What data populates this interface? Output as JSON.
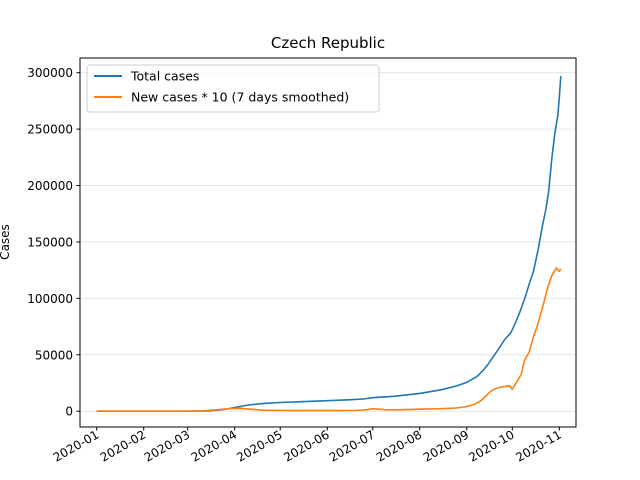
{
  "chart_data": {
    "type": "line",
    "title": "Czech Republic",
    "xlabel": "",
    "ylabel": "Cases",
    "x_tick_labels": [
      "2020-01",
      "2020-02",
      "2020-03",
      "2020-04",
      "2020-05",
      "2020-06",
      "2020-07",
      "2020-08",
      "2020-09",
      "2020-10",
      "2020-11"
    ],
    "y_ticks": [
      0,
      50000,
      100000,
      150000,
      200000,
      250000,
      300000
    ],
    "y_tick_labels": [
      "0",
      "50000",
      "100000",
      "150000",
      "200000",
      "250000",
      "300000"
    ],
    "xlim": [
      "2019-12-21",
      "2020-11-12"
    ],
    "ylim": [
      -14000,
      313000
    ],
    "grid": "horizontal",
    "legend_position": "upper-left",
    "series": [
      {
        "name": "Total cases",
        "color": "#1f77b4",
        "points": [
          [
            "2020-01-01",
            0
          ],
          [
            "2020-02-01",
            0
          ],
          [
            "2020-03-01",
            0
          ],
          [
            "2020-03-15",
            250
          ],
          [
            "2020-03-25",
            1500
          ],
          [
            "2020-04-01",
            3300
          ],
          [
            "2020-04-10",
            5500
          ],
          [
            "2020-04-20",
            6900
          ],
          [
            "2020-05-01",
            7700
          ],
          [
            "2020-05-15",
            8400
          ],
          [
            "2020-06-01",
            9300
          ],
          [
            "2020-06-15",
            10100
          ],
          [
            "2020-06-25",
            10800
          ],
          [
            "2020-07-01",
            12000
          ],
          [
            "2020-07-15",
            13200
          ],
          [
            "2020-08-01",
            15800
          ],
          [
            "2020-08-15",
            19000
          ],
          [
            "2020-08-25",
            22300
          ],
          [
            "2020-09-01",
            25500
          ],
          [
            "2020-09-08",
            31000
          ],
          [
            "2020-09-12",
            36500
          ],
          [
            "2020-09-15",
            41500
          ],
          [
            "2020-09-18",
            47500
          ],
          [
            "2020-09-22",
            55000
          ],
          [
            "2020-09-26",
            63500
          ],
          [
            "2020-09-30",
            69500
          ],
          [
            "2020-10-03",
            78000
          ],
          [
            "2020-10-06",
            88000
          ],
          [
            "2020-10-09",
            99000
          ],
          [
            "2020-10-12",
            112000
          ],
          [
            "2020-10-15",
            124000
          ],
          [
            "2020-10-18",
            143000
          ],
          [
            "2020-10-21",
            165000
          ],
          [
            "2020-10-23",
            178000
          ],
          [
            "2020-10-25",
            195000
          ],
          [
            "2020-10-27",
            223000
          ],
          [
            "2020-10-29",
            246000
          ],
          [
            "2020-10-31",
            262000
          ],
          [
            "2020-11-01",
            278000
          ],
          [
            "2020-11-02",
            297000
          ]
        ]
      },
      {
        "name": "New cases * 10 (7 days smoothed)",
        "color": "#ff7f0e",
        "points": [
          [
            "2020-01-01",
            0
          ],
          [
            "2020-02-01",
            0
          ],
          [
            "2020-03-01",
            0
          ],
          [
            "2020-03-10",
            300
          ],
          [
            "2020-03-20",
            1200
          ],
          [
            "2020-03-28",
            2200
          ],
          [
            "2020-04-05",
            2600
          ],
          [
            "2020-04-12",
            1700
          ],
          [
            "2020-04-20",
            900
          ],
          [
            "2020-05-01",
            600
          ],
          [
            "2020-05-15",
            500
          ],
          [
            "2020-06-01",
            500
          ],
          [
            "2020-06-20",
            600
          ],
          [
            "2020-06-28",
            1500
          ],
          [
            "2020-07-01",
            2200
          ],
          [
            "2020-07-05",
            1800
          ],
          [
            "2020-07-10",
            1200
          ],
          [
            "2020-07-20",
            1300
          ],
          [
            "2020-08-01",
            1800
          ],
          [
            "2020-08-15",
            2200
          ],
          [
            "2020-08-25",
            2800
          ],
          [
            "2020-09-01",
            4200
          ],
          [
            "2020-09-06",
            6000
          ],
          [
            "2020-09-10",
            9000
          ],
          [
            "2020-09-14",
            14000
          ],
          [
            "2020-09-17",
            18000
          ],
          [
            "2020-09-20",
            20000
          ],
          [
            "2020-09-24",
            21500
          ],
          [
            "2020-09-29",
            22500
          ],
          [
            "2020-10-01",
            19500
          ],
          [
            "2020-10-04",
            26000
          ],
          [
            "2020-10-07",
            33000
          ],
          [
            "2020-10-09",
            45000
          ],
          [
            "2020-10-12",
            52000
          ],
          [
            "2020-10-15",
            66000
          ],
          [
            "2020-10-18",
            78000
          ],
          [
            "2020-10-21",
            92000
          ],
          [
            "2020-10-24",
            108000
          ],
          [
            "2020-10-27",
            120000
          ],
          [
            "2020-10-30",
            127000
          ],
          [
            "2020-11-01",
            124000
          ],
          [
            "2020-11-02",
            126000
          ]
        ]
      }
    ]
  }
}
